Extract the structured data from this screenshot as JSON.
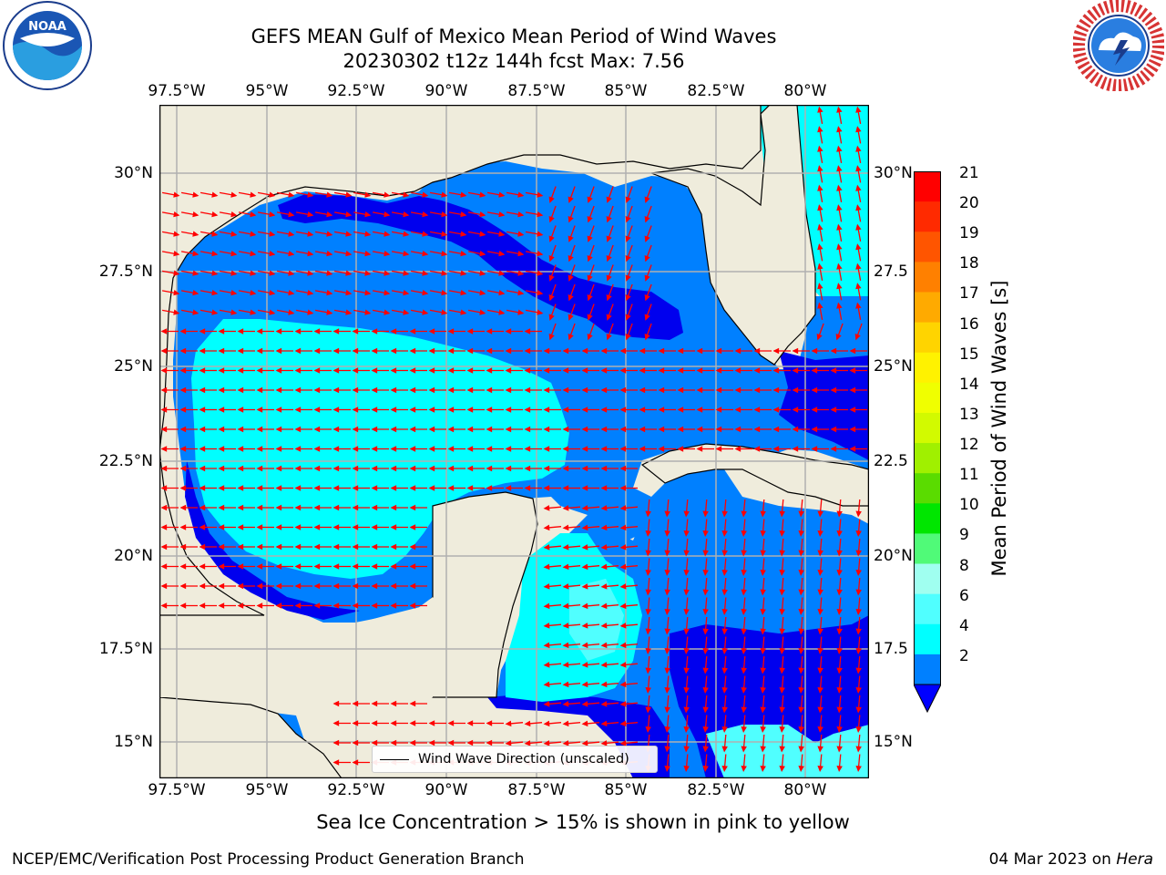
{
  "title_line1": "GEFS MEAN Gulf of Mexico Mean Period of Wind Waves",
  "title_line2": "20230302 t12z 144h fcst   Max: 7.56",
  "lon_ticks": [
    "97.5°W",
    "95°W",
    "92.5°W",
    "90°W",
    "87.5°W",
    "85°W",
    "82.5°W",
    "80°W"
  ],
  "lat_ticks": [
    "30°N",
    "27.5°N",
    "25°N",
    "22.5°N",
    "20°N",
    "17.5°N",
    "15°N"
  ],
  "lat_ticks_right": [
    "30°N",
    "27.5",
    "25°N",
    "22.5",
    "20°N",
    "17.5",
    "15°N"
  ],
  "colorbar": {
    "label": "Mean Period of Wind Waves [s]",
    "ticks": [
      "21",
      "20",
      "19",
      "18",
      "17",
      "16",
      "15",
      "14",
      "13",
      "12",
      "11",
      "10",
      "9",
      "8",
      "6",
      "4",
      "2"
    ],
    "colors": [
      "#ff0000",
      "#ff2a00",
      "#ff5500",
      "#ff8000",
      "#ffaa00",
      "#ffd400",
      "#fff200",
      "#f0ff00",
      "#d2fa00",
      "#a0f000",
      "#5adc00",
      "#00e600",
      "#50fa78",
      "#a0fff0",
      "#50ffff",
      "#00ffff",
      "#0080ff"
    ],
    "extend_color": "#0000ff"
  },
  "legend": {
    "label": "Wind Wave Direction (unscaled)"
  },
  "note": "Sea Ice Concentration > 15% is shown in pink to yellow",
  "footer_left": "NCEP/EMC/Verification Post Processing Product Generation Branch",
  "footer_date": "04 Mar 2023 on ",
  "footer_machine": "Hera",
  "logos": {
    "left": "NOAA",
    "right_text": "NATIONAL WEATHER SERVICE"
  },
  "colors": {
    "land": "#efecdc",
    "level_2_4": "#0080ff",
    "level_0_2": "#0000ee",
    "level_4_6": "#00ffff",
    "arrow": "#ff0000",
    "grid": "#b0b0b0"
  }
}
